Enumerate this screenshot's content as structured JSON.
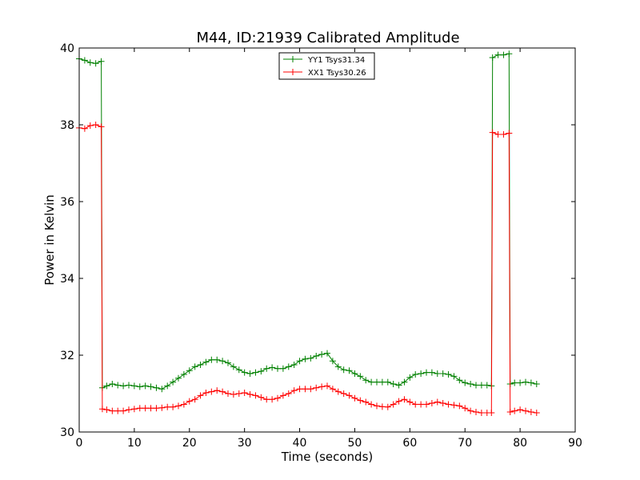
{
  "chart_data": {
    "type": "line",
    "title": "M44, ID:21939 Calibrated Amplitude",
    "xlabel": "Time (seconds)",
    "ylabel": "Power in Kelvin",
    "xlim": [
      0,
      90
    ],
    "ylim": [
      30,
      40
    ],
    "xticks": [
      "0",
      "10",
      "20",
      "30",
      "40",
      "50",
      "60",
      "70",
      "80",
      "90"
    ],
    "yticks": [
      "30",
      "32",
      "34",
      "36",
      "38",
      "40"
    ],
    "grid": false,
    "legend_position": "top-center",
    "series": [
      {
        "name": "YY1 Tsys31.34",
        "color": "#008000",
        "marker": "+",
        "x": [
          0,
          1,
          2,
          3,
          4,
          4.2,
          5,
          6,
          7,
          8,
          9,
          10,
          11,
          12,
          13,
          14,
          15,
          16,
          17,
          18,
          19,
          20,
          21,
          22,
          23,
          24,
          25,
          26,
          27,
          28,
          29,
          30,
          31,
          32,
          33,
          34,
          35,
          36,
          37,
          38,
          39,
          40,
          41,
          42,
          43,
          44,
          45,
          46,
          47,
          48,
          49,
          50,
          51,
          52,
          53,
          54,
          55,
          56,
          57,
          58,
          59,
          60,
          61,
          62,
          63,
          64,
          65,
          66,
          67,
          68,
          69,
          70,
          71,
          72,
          73,
          74,
          74.8,
          75,
          76,
          77,
          78,
          78.2,
          79,
          80,
          81,
          82,
          83
        ],
        "y": [
          39.72,
          39.68,
          39.62,
          39.6,
          39.65,
          31.15,
          31.2,
          31.25,
          31.22,
          31.2,
          31.22,
          31.2,
          31.18,
          31.2,
          31.18,
          31.15,
          31.12,
          31.2,
          31.3,
          31.4,
          31.5,
          31.6,
          31.7,
          31.75,
          31.82,
          31.88,
          31.88,
          31.85,
          31.8,
          31.7,
          31.62,
          31.55,
          31.52,
          31.55,
          31.58,
          31.65,
          31.68,
          31.65,
          31.65,
          31.7,
          31.75,
          31.85,
          31.9,
          31.92,
          31.98,
          32.02,
          32.05,
          31.85,
          31.7,
          31.62,
          31.6,
          31.52,
          31.45,
          31.35,
          31.3,
          31.3,
          31.3,
          31.3,
          31.25,
          31.22,
          31.3,
          31.42,
          31.5,
          31.52,
          31.55,
          31.55,
          31.52,
          31.52,
          31.5,
          31.45,
          31.35,
          31.28,
          31.25,
          31.22,
          31.22,
          31.22,
          31.2,
          39.75,
          39.82,
          39.82,
          39.85,
          31.25,
          31.28,
          31.28,
          31.3,
          31.28,
          31.25
        ]
      },
      {
        "name": "XX1 Tsys30.26",
        "color": "#ff0000",
        "marker": "+",
        "x": [
          0,
          1,
          2,
          3,
          4,
          4.2,
          5,
          6,
          7,
          8,
          9,
          10,
          11,
          12,
          13,
          14,
          15,
          16,
          17,
          18,
          19,
          20,
          21,
          22,
          23,
          24,
          25,
          26,
          27,
          28,
          29,
          30,
          31,
          32,
          33,
          34,
          35,
          36,
          37,
          38,
          39,
          40,
          41,
          42,
          43,
          44,
          45,
          46,
          47,
          48,
          49,
          50,
          51,
          52,
          53,
          54,
          55,
          56,
          57,
          58,
          59,
          60,
          61,
          62,
          63,
          64,
          65,
          66,
          67,
          68,
          69,
          70,
          71,
          72,
          73,
          74,
          74.8,
          75,
          76,
          77,
          78,
          78.2,
          79,
          80,
          81,
          82,
          83
        ],
        "y": [
          37.92,
          37.9,
          37.98,
          38.0,
          37.95,
          30.6,
          30.58,
          30.55,
          30.55,
          30.55,
          30.58,
          30.6,
          30.62,
          30.62,
          30.62,
          30.62,
          30.63,
          30.65,
          30.65,
          30.68,
          30.72,
          30.8,
          30.85,
          30.95,
          31.02,
          31.05,
          31.08,
          31.05,
          31.0,
          30.98,
          31.0,
          31.02,
          30.98,
          30.95,
          30.9,
          30.85,
          30.85,
          30.88,
          30.95,
          31.0,
          31.08,
          31.12,
          31.12,
          31.12,
          31.15,
          31.18,
          31.2,
          31.12,
          31.05,
          31.0,
          30.95,
          30.88,
          30.82,
          30.78,
          30.72,
          30.68,
          30.66,
          30.65,
          30.72,
          30.8,
          30.85,
          30.78,
          30.72,
          30.72,
          30.72,
          30.75,
          30.78,
          30.75,
          30.72,
          30.7,
          30.68,
          30.62,
          30.55,
          30.52,
          30.5,
          30.5,
          30.5,
          37.8,
          37.75,
          37.75,
          37.78,
          30.52,
          30.55,
          30.58,
          30.55,
          30.52,
          30.5
        ]
      }
    ]
  }
}
